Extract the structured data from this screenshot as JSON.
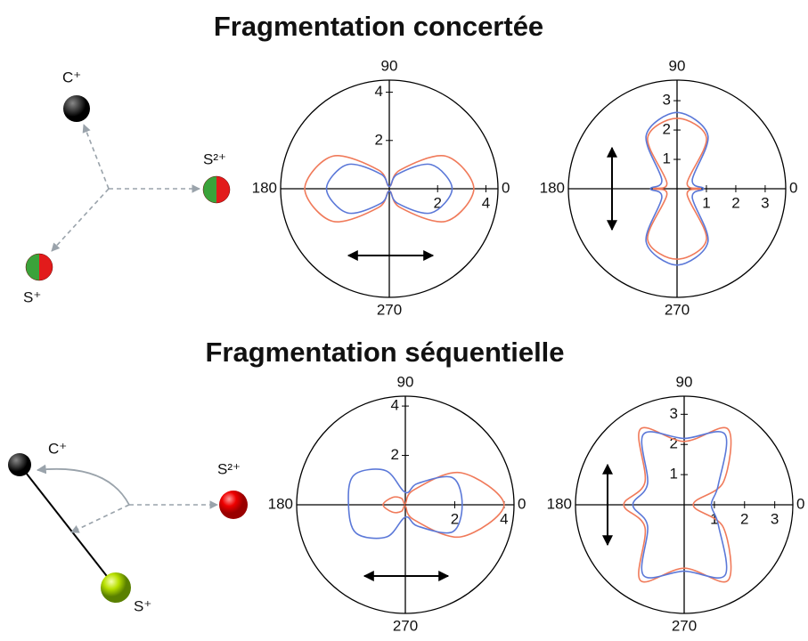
{
  "titles": [
    "Fragmentation concertée",
    "Fragmentation séquentielle"
  ],
  "diagrams": [
    {
      "labels": [
        "C⁺",
        "S²⁺",
        "S⁺"
      ]
    },
    {
      "labels": [
        "C⁺",
        "S²⁺",
        "S⁺"
      ]
    }
  ],
  "chart_data": [
    {
      "type": "polar",
      "angle_ticks": [
        90,
        180,
        270,
        0
      ],
      "rlim": [
        0,
        4.5
      ],
      "rticks": [
        2,
        4
      ],
      "angles": [
        0,
        30,
        60,
        90,
        120,
        150,
        180,
        210,
        240,
        270,
        300,
        330
      ],
      "series": [
        {
          "color": "#f07a5a",
          "values": [
            3.5,
            2.7,
            0.9,
            0.1,
            0.9,
            2.7,
            3.5,
            2.7,
            0.9,
            0.1,
            0.9,
            2.7
          ]
        },
        {
          "color": "#5b78d8",
          "values": [
            2.6,
            2.0,
            0.7,
            0.1,
            0.7,
            2.0,
            2.6,
            2.0,
            0.7,
            0.1,
            0.7,
            2.0
          ]
        }
      ]
    },
    {
      "type": "polar",
      "angle_ticks": [
        90,
        180,
        270,
        0
      ],
      "rlim": [
        0,
        3.7
      ],
      "rticks": [
        1,
        2,
        3
      ],
      "angles": [
        0,
        30,
        60,
        90,
        120,
        150,
        180,
        210,
        240,
        270,
        300,
        330
      ],
      "series": [
        {
          "color": "#f07a5a",
          "values": [
            0.8,
            0.4,
            2.0,
            2.4,
            2.0,
            0.4,
            0.8,
            0.4,
            2.0,
            2.4,
            2.0,
            0.4
          ]
        },
        {
          "color": "#5b78d8",
          "values": [
            0.9,
            0.6,
            2.1,
            2.6,
            2.1,
            0.6,
            0.9,
            0.6,
            2.1,
            2.6,
            2.1,
            0.6
          ]
        }
      ]
    },
    {
      "type": "polar",
      "angle_ticks": [
        90,
        180,
        270,
        0
      ],
      "rlim": [
        0,
        4.4
      ],
      "rticks": [
        2,
        4
      ],
      "angles": [
        0,
        30,
        60,
        90,
        120,
        150,
        180,
        210,
        240,
        270,
        300,
        330
      ],
      "series": [
        {
          "color": "#f07a5a",
          "values": [
            4.0,
            2.6,
            0.7,
            0.05,
            0.3,
            0.6,
            0.9,
            0.6,
            0.3,
            0.05,
            0.7,
            2.6
          ]
        },
        {
          "color": "#5b78d8",
          "values": [
            2.3,
            2.2,
            1.0,
            0.5,
            1.6,
            2.4,
            2.3,
            2.3,
            1.5,
            0.5,
            1.0,
            2.2
          ]
        }
      ]
    },
    {
      "type": "polar",
      "angle_ticks": [
        90,
        180,
        270,
        0
      ],
      "rlim": [
        0,
        3.6
      ],
      "rticks": [
        1,
        2,
        3
      ],
      "angles": [
        0,
        30,
        60,
        90,
        120,
        150,
        180,
        210,
        240,
        270,
        300,
        330
      ],
      "series": [
        {
          "color": "#f07a5a",
          "values": [
            0.3,
            1.5,
            2.9,
            2.1,
            2.9,
            1.5,
            2.0,
            1.5,
            2.9,
            2.1,
            2.9,
            1.5
          ]
        },
        {
          "color": "#5b78d8",
          "values": [
            0.9,
            1.3,
            2.7,
            2.2,
            2.7,
            1.4,
            1.7,
            1.4,
            2.7,
            2.2,
            2.7,
            1.3
          ]
        }
      ]
    }
  ]
}
